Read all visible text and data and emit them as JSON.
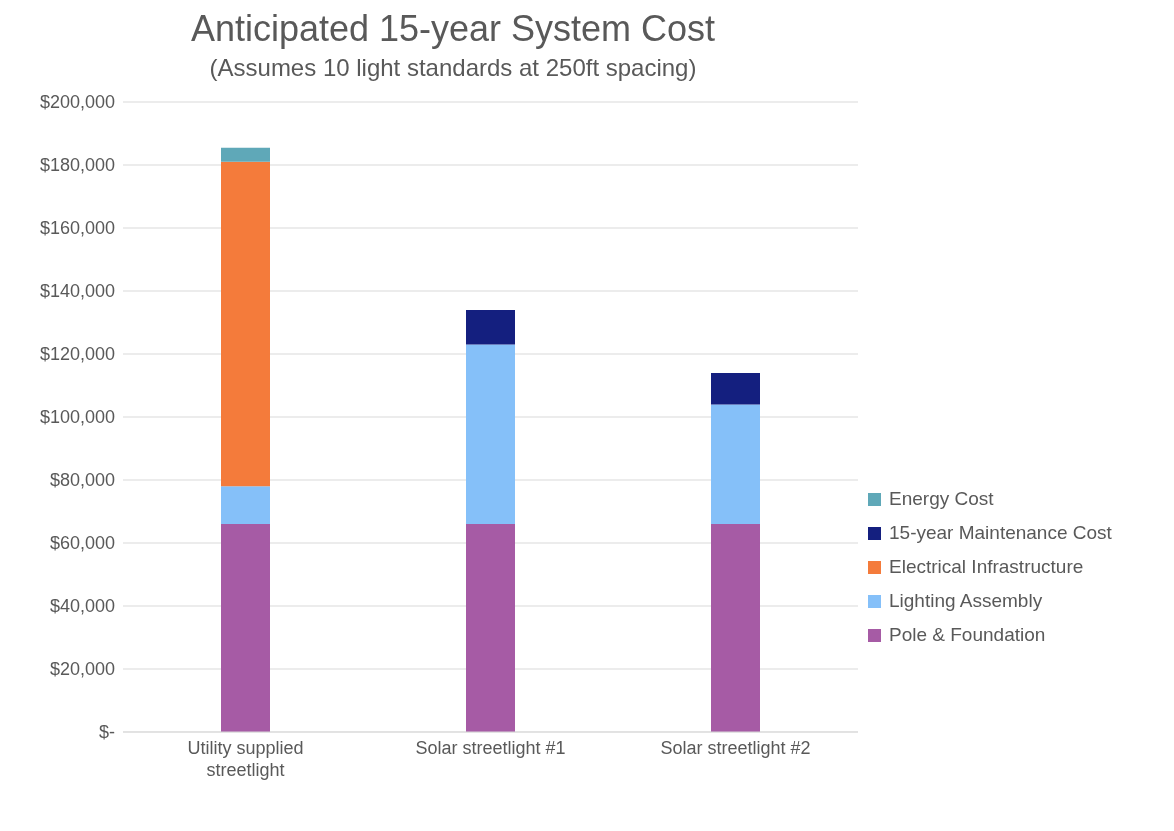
{
  "chart_data": {
    "type": "bar",
    "title": "Anticipated 15-year System Cost",
    "subtitle": "(Assumes 10 light standards at 250ft spacing)",
    "categories": [
      "Utility supplied streetlight",
      "Solar streetlight #1",
      "Solar streetlight #2"
    ],
    "stacked": true,
    "series": [
      {
        "name": "Pole & Foundation",
        "color": "#a65ba5",
        "values": [
          66000,
          66000,
          66000
        ]
      },
      {
        "name": "Lighting Assembly",
        "color": "#85c0f9",
        "values": [
          12000,
          57000,
          38000
        ]
      },
      {
        "name": "Electrical Infrastructure",
        "color": "#f47b3b",
        "values": [
          103000,
          null,
          null
        ]
      },
      {
        "name": "15-year Maintenance Cost",
        "color": "#141f7f",
        "values": [
          null,
          11000,
          10000
        ]
      },
      {
        "name": "Energy Cost",
        "color": "#5fa8b8",
        "values": [
          4500,
          null,
          null
        ]
      }
    ],
    "ylim": [
      0,
      200000
    ],
    "yticks": [
      {
        "value": 0,
        "label": "$-"
      },
      {
        "value": 20000,
        "label": "$20,000"
      },
      {
        "value": 40000,
        "label": "$40,000"
      },
      {
        "value": 60000,
        "label": "$60,000"
      },
      {
        "value": 80000,
        "label": "$80,000"
      },
      {
        "value": 100000,
        "label": "$100,000"
      },
      {
        "value": 120000,
        "label": "$120,000"
      },
      {
        "value": 140000,
        "label": "$140,000"
      },
      {
        "value": 160000,
        "label": "$160,000"
      },
      {
        "value": 180000,
        "label": "$180,000"
      },
      {
        "value": 200000,
        "label": "$200,000"
      }
    ],
    "grid": "y",
    "legend": "right"
  }
}
